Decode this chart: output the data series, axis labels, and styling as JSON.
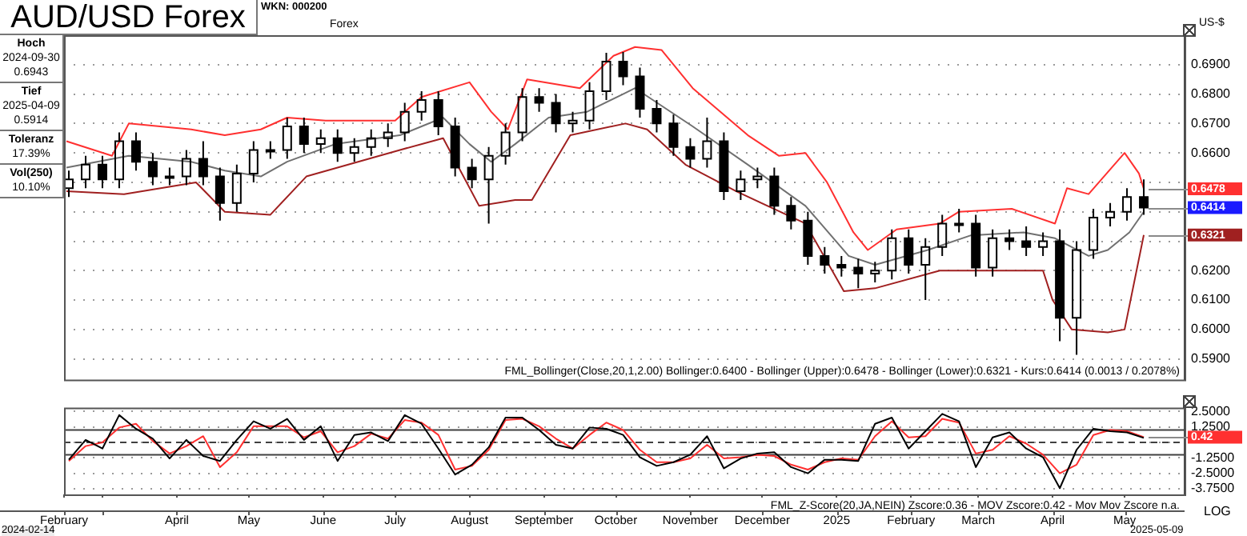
{
  "chart_data": [
    {
      "type": "candlestick",
      "title": "AUD/USD Forex",
      "ylabel": "US-$",
      "color": "#000000",
      "x": [
        "2024-02-16",
        "2024-02-23",
        "2024-03-01",
        "2024-03-08",
        "2024-03-15",
        "2024-03-22",
        "2024-03-29",
        "2024-04-05",
        "2024-04-12",
        "2024-04-19",
        "2024-04-26",
        "2024-05-03",
        "2024-05-10",
        "2024-05-17",
        "2024-05-24",
        "2024-05-31",
        "2024-06-07",
        "2024-06-14",
        "2024-06-21",
        "2024-06-28",
        "2024-07-05",
        "2024-07-12",
        "2024-07-19",
        "2024-07-26",
        "2024-08-02",
        "2024-08-09",
        "2024-08-16",
        "2024-08-23",
        "2024-08-30",
        "2024-09-06",
        "2024-09-13",
        "2024-09-20",
        "2024-09-27",
        "2024-10-04",
        "2024-10-11",
        "2024-10-18",
        "2024-10-25",
        "2024-11-01",
        "2024-11-08",
        "2024-11-15",
        "2024-11-22",
        "2024-11-29",
        "2024-12-06",
        "2024-12-13",
        "2024-12-20",
        "2024-12-27",
        "2025-01-03",
        "2025-01-10",
        "2025-01-17",
        "2025-01-24",
        "2025-01-31",
        "2025-02-07",
        "2025-02-14",
        "2025-02-21",
        "2025-02-28",
        "2025-03-07",
        "2025-03-14",
        "2025-03-21",
        "2025-03-28",
        "2025-04-04",
        "2025-04-11",
        "2025-04-18",
        "2025-04-25",
        "2025-05-02",
        "2025-05-09"
      ],
      "ohlc": [
        [
          0.648,
          0.654,
          0.645,
          0.651
        ],
        [
          0.651,
          0.659,
          0.648,
          0.656
        ],
        [
          0.656,
          0.659,
          0.648,
          0.651
        ],
        [
          0.651,
          0.667,
          0.648,
          0.664
        ],
        [
          0.664,
          0.667,
          0.654,
          0.657
        ],
        [
          0.657,
          0.66,
          0.649,
          0.652
        ],
        [
          0.652,
          0.655,
          0.649,
          0.652
        ],
        [
          0.652,
          0.661,
          0.649,
          0.658
        ],
        [
          0.658,
          0.664,
          0.649,
          0.652
        ],
        [
          0.652,
          0.655,
          0.637,
          0.643
        ],
        [
          0.643,
          0.656,
          0.64,
          0.653
        ],
        [
          0.653,
          0.664,
          0.65,
          0.661
        ],
        [
          0.661,
          0.664,
          0.658,
          0.661
        ],
        [
          0.661,
          0.672,
          0.658,
          0.669
        ],
        [
          0.669,
          0.672,
          0.66,
          0.663
        ],
        [
          0.663,
          0.668,
          0.66,
          0.665
        ],
        [
          0.665,
          0.668,
          0.657,
          0.66
        ],
        [
          0.66,
          0.665,
          0.657,
          0.662
        ],
        [
          0.662,
          0.668,
          0.659,
          0.665
        ],
        [
          0.665,
          0.67,
          0.662,
          0.667
        ],
        [
          0.667,
          0.677,
          0.664,
          0.674
        ],
        [
          0.674,
          0.681,
          0.671,
          0.678
        ],
        [
          0.678,
          0.681,
          0.666,
          0.669
        ],
        [
          0.669,
          0.672,
          0.652,
          0.655
        ],
        [
          0.655,
          0.658,
          0.648,
          0.651
        ],
        [
          0.651,
          0.662,
          0.636,
          0.659
        ],
        [
          0.659,
          0.67,
          0.656,
          0.667
        ],
        [
          0.667,
          0.682,
          0.664,
          0.679
        ],
        [
          0.679,
          0.682,
          0.674,
          0.677
        ],
        [
          0.677,
          0.68,
          0.667,
          0.67
        ],
        [
          0.67,
          0.674,
          0.667,
          0.671
        ],
        [
          0.671,
          0.684,
          0.668,
          0.681
        ],
        [
          0.681,
          0.694,
          0.678,
          0.691
        ],
        [
          0.691,
          0.6943,
          0.683,
          0.686
        ],
        [
          0.686,
          0.689,
          0.672,
          0.675
        ],
        [
          0.675,
          0.678,
          0.667,
          0.67
        ],
        [
          0.67,
          0.673,
          0.659,
          0.662
        ],
        [
          0.662,
          0.665,
          0.655,
          0.658
        ],
        [
          0.658,
          0.672,
          0.655,
          0.664
        ],
        [
          0.664,
          0.667,
          0.644,
          0.647
        ],
        [
          0.647,
          0.654,
          0.644,
          0.651
        ],
        [
          0.651,
          0.655,
          0.648,
          0.652
        ],
        [
          0.652,
          0.655,
          0.639,
          0.642
        ],
        [
          0.642,
          0.645,
          0.634,
          0.637
        ],
        [
          0.637,
          0.64,
          0.622,
          0.625
        ],
        [
          0.625,
          0.628,
          0.619,
          0.622
        ],
        [
          0.622,
          0.625,
          0.618,
          0.621
        ],
        [
          0.621,
          0.624,
          0.614,
          0.619
        ],
        [
          0.619,
          0.623,
          0.616,
          0.62
        ],
        [
          0.62,
          0.634,
          0.617,
          0.631
        ],
        [
          0.631,
          0.634,
          0.619,
          0.622
        ],
        [
          0.622,
          0.631,
          0.61,
          0.628
        ],
        [
          0.628,
          0.639,
          0.625,
          0.636
        ],
        [
          0.636,
          0.641,
          0.633,
          0.636
        ],
        [
          0.636,
          0.639,
          0.618,
          0.621
        ],
        [
          0.621,
          0.634,
          0.618,
          0.631
        ],
        [
          0.631,
          0.634,
          0.627,
          0.63
        ],
        [
          0.63,
          0.635,
          0.625,
          0.628
        ],
        [
          0.628,
          0.633,
          0.625,
          0.63
        ],
        [
          0.63,
          0.634,
          0.596,
          0.604
        ],
        [
          0.604,
          0.63,
          0.5914,
          0.627
        ],
        [
          0.627,
          0.641,
          0.624,
          0.638
        ],
        [
          0.638,
          0.643,
          0.635,
          0.64
        ],
        [
          0.64,
          0.648,
          0.637,
          0.645
        ],
        [
          0.645,
          0.651,
          0.639,
          0.6414
        ]
      ],
      "series": [
        {
          "type": "line",
          "color": "#ff3030",
          "x": [
            "2024-02-15",
            "2024-03-05",
            "2024-03-12",
            "2024-04-07",
            "2024-04-21",
            "2024-05-06",
            "2024-05-17",
            "2024-06-02",
            "2024-07-01",
            "2024-07-12",
            "2024-08-01",
            "2024-08-10",
            "2024-08-17",
            "2024-08-25",
            "2024-09-16",
            "2024-09-30",
            "2024-10-09",
            "2024-10-20",
            "2024-11-02",
            "2024-11-25",
            "2024-12-08",
            "2024-12-19",
            "2024-12-28",
            "2025-01-08",
            "2025-01-14",
            "2025-01-26",
            "2025-02-13",
            "2025-02-21",
            "2025-03-15",
            "2025-04-02",
            "2025-04-07",
            "2025-04-16",
            "2025-05-01",
            "2025-05-07",
            "2025-05-09"
          ],
          "values": [
            0.664,
            0.659,
            0.67,
            0.668,
            0.666,
            0.668,
            0.672,
            0.671,
            0.671,
            0.679,
            0.684,
            0.674,
            0.668,
            0.685,
            0.682,
            0.693,
            0.696,
            0.695,
            0.682,
            0.666,
            0.659,
            0.66,
            0.65,
            0.633,
            0.627,
            0.634,
            0.636,
            0.64,
            0.641,
            0.636,
            0.648,
            0.646,
            0.66,
            0.653,
            0.6478
          ]
        },
        {
          "type": "line",
          "color": "#707070",
          "x": [
            "2024-02-15",
            "2024-03-12",
            "2024-04-07",
            "2024-04-21",
            "2024-05-06",
            "2024-05-17",
            "2024-06-06",
            "2024-07-03",
            "2024-07-21",
            "2024-08-01",
            "2024-08-10",
            "2024-08-20",
            "2024-09-03",
            "2024-09-19",
            "2024-10-04",
            "2024-10-09",
            "2024-11-02",
            "2024-11-25",
            "2024-12-19",
            "2025-01-06",
            "2025-01-17",
            "2025-02-08",
            "2025-02-26",
            "2025-03-20",
            "2025-04-02",
            "2025-04-16",
            "2025-04-24",
            "2025-05-03",
            "2025-05-09"
          ],
          "values": [
            0.655,
            0.659,
            0.657,
            0.654,
            0.652,
            0.657,
            0.663,
            0.666,
            0.672,
            0.663,
            0.657,
            0.663,
            0.672,
            0.674,
            0.68,
            0.682,
            0.669,
            0.656,
            0.642,
            0.625,
            0.622,
            0.627,
            0.632,
            0.633,
            0.631,
            0.625,
            0.627,
            0.633,
            0.64
          ]
        },
        {
          "type": "line",
          "color": "#a02020",
          "x": [
            "2024-02-15",
            "2024-03-10",
            "2024-04-09",
            "2024-04-21",
            "2024-05-10",
            "2024-05-25",
            "2024-07-03",
            "2024-07-21",
            "2024-08-05",
            "2024-08-20",
            "2024-08-27",
            "2024-09-12",
            "2024-10-05",
            "2024-10-14",
            "2024-10-30",
            "2024-11-20",
            "2024-12-19",
            "2025-01-04",
            "2025-01-17",
            "2025-02-13",
            "2025-03-28",
            "2025-04-01",
            "2025-04-09",
            "2025-04-24",
            "2025-05-01",
            "2025-05-09"
          ],
          "values": [
            0.647,
            0.646,
            0.65,
            0.64,
            0.639,
            0.652,
            0.661,
            0.665,
            0.642,
            0.644,
            0.644,
            0.666,
            0.67,
            0.668,
            0.656,
            0.647,
            0.636,
            0.613,
            0.614,
            0.62,
            0.62,
            0.61,
            0.6,
            0.599,
            0.6,
            0.6321
          ]
        }
      ],
      "xlim": [
        "2024-02-14",
        "2025-05-26"
      ],
      "ylim": [
        0.583,
        0.7
      ],
      "yticks": [
        {
          "value": 0.59,
          "label": "0.5900"
        },
        {
          "value": 0.6,
          "label": "0.6000"
        },
        {
          "value": 0.61,
          "label": "0.6100"
        },
        {
          "value": 0.62,
          "label": "0.6200"
        },
        {
          "value": 0.63,
          "label": null
        },
        {
          "value": 0.64,
          "label": null
        },
        {
          "value": 0.65,
          "label": null
        },
        {
          "value": 0.66,
          "label": "0.6600"
        },
        {
          "value": 0.67,
          "label": "0.6700"
        },
        {
          "value": 0.68,
          "label": "0.6800"
        },
        {
          "value": 0.69,
          "label": "0.6900"
        }
      ],
      "grid": "y",
      "tick_labels": "y",
      "annotations": [
        "FML_Bollinger(Close,20,1,2.00) Bollinger:0.6400 - Bollinger (Upper):0.6478 - Bollinger (Lower):0.6321 - Kurs:0.6414 (0.0013 / 0.2078%)",
        "WKN: 000200",
        "Forex",
        "Hoch",
        "2024-09-30",
        "0.6943",
        "Tief",
        "2025-04-09",
        "0.5914",
        "Toleranz",
        "17.39%",
        "Vol(250)",
        "10.10%",
        {
          "text": "0.6478",
          "x": "2025-05-09",
          "y": 0.6478
        },
        {
          "text": "0.6414",
          "x": "2025-05-09",
          "y": 0.6414
        },
        {
          "text": "0.6321",
          "x": "2025-05-09",
          "y": 0.6321
        }
      ]
    },
    {
      "type": "line",
      "x": [
        "2024-02-16",
        "2024-02-23",
        "2024-03-01",
        "2024-03-08",
        "2024-03-15",
        "2024-03-22",
        "2024-03-29",
        "2024-04-05",
        "2024-04-12",
        "2024-04-19",
        "2024-04-26",
        "2024-05-03",
        "2024-05-10",
        "2024-05-17",
        "2024-05-24",
        "2024-05-31",
        "2024-06-07",
        "2024-06-14",
        "2024-06-21",
        "2024-06-28",
        "2024-07-05",
        "2024-07-12",
        "2024-07-19",
        "2024-07-26",
        "2024-08-02",
        "2024-08-09",
        "2024-08-16",
        "2024-08-23",
        "2024-08-30",
        "2024-09-06",
        "2024-09-13",
        "2024-09-20",
        "2024-09-27",
        "2024-10-04",
        "2024-10-11",
        "2024-10-18",
        "2024-10-25",
        "2024-11-01",
        "2024-11-08",
        "2024-11-15",
        "2024-11-22",
        "2024-11-29",
        "2024-12-06",
        "2024-12-13",
        "2024-12-20",
        "2024-12-27",
        "2025-01-03",
        "2025-01-10",
        "2025-01-17",
        "2025-01-24",
        "2025-01-31",
        "2025-02-07",
        "2025-02-14",
        "2025-02-21",
        "2025-02-28",
        "2025-03-07",
        "2025-03-14",
        "2025-03-21",
        "2025-03-28",
        "2025-04-04",
        "2025-04-11",
        "2025-04-18",
        "2025-04-25",
        "2025-05-02",
        "2025-05-09"
      ],
      "series": [
        {
          "color": "#000000",
          "values": [
            -1.4,
            0.2,
            -0.5,
            2.2,
            1.1,
            0.3,
            -1.3,
            0.2,
            -1.1,
            -1.5,
            0.2,
            1.7,
            1.1,
            1.9,
            0.2,
            1.3,
            -1.5,
            0.6,
            0.8,
            0.1,
            2.2,
            1.5,
            -0.5,
            -2.6,
            -1.8,
            -0.4,
            2.0,
            2.0,
            1.0,
            -0.2,
            -0.5,
            1.2,
            1.1,
            0.6,
            -1.2,
            -1.9,
            -1.6,
            -1.0,
            0.5,
            -2.1,
            -1.3,
            -0.9,
            -0.8,
            -2.0,
            -2.5,
            -1.4,
            -1.4,
            -1.5,
            1.5,
            2.0,
            -0.5,
            0.9,
            2.3,
            1.7,
            -2.0,
            0.4,
            0.8,
            -0.5,
            -1.2,
            -3.7,
            -0.6,
            1.1,
            0.9,
            0.8,
            0.36
          ]
        },
        {
          "color": "#ff3030",
          "values": [
            -1.5,
            -0.3,
            0.0,
            1.2,
            1.5,
            0.1,
            -0.9,
            -0.3,
            0.5,
            -2.0,
            -0.8,
            1.3,
            1.3,
            1.3,
            0.4,
            0.9,
            -0.8,
            -0.3,
            0.7,
            0.3,
            1.8,
            1.6,
            0.6,
            -2.2,
            -1.9,
            -0.6,
            1.8,
            1.9,
            1.3,
            0.3,
            -0.5,
            0.6,
            1.6,
            1.0,
            -0.6,
            -1.6,
            -1.6,
            -1.3,
            -0.2,
            -1.3,
            -1.2,
            -1.0,
            -1.1,
            -1.8,
            -2.2,
            -1.6,
            -1.3,
            -1.4,
            0.5,
            1.7,
            0.4,
            0.5,
            1.9,
            1.6,
            -0.9,
            -0.6,
            0.5,
            -0.1,
            -1.0,
            -2.5,
            -1.8,
            0.6,
            1.0,
            0.9,
            0.42
          ]
        }
      ],
      "xlim": [
        "2024-02-14",
        "2025-05-26"
      ],
      "xticks": [
        {
          "value": "2024-02-14",
          "label": "February"
        },
        {
          "value": "2024-03-01",
          "label": null
        },
        {
          "value": "2024-04-01",
          "label": "April"
        },
        {
          "value": "2024-05-01",
          "label": "May"
        },
        {
          "value": "2024-06-01",
          "label": "June"
        },
        {
          "value": "2024-07-01",
          "label": "July"
        },
        {
          "value": "2024-08-01",
          "label": "August"
        },
        {
          "value": "2024-09-01",
          "label": "September"
        },
        {
          "value": "2024-10-01",
          "label": "October"
        },
        {
          "value": "2024-11-01",
          "label": "November"
        },
        {
          "value": "2024-12-01",
          "label": "December"
        },
        {
          "value": "2025-01-01",
          "label": "2025"
        },
        {
          "value": "2025-02-01",
          "label": "February"
        },
        {
          "value": "2025-03-01",
          "label": "March"
        },
        {
          "value": "2025-04-01",
          "label": "April"
        },
        {
          "value": "2025-05-01",
          "label": "May"
        }
      ],
      "ylim": [
        -4.2,
        2.8
      ],
      "yticks": [
        {
          "value": 2.5,
          "label": "2.5000"
        },
        {
          "value": 1.25,
          "label": "1.2500"
        },
        {
          "value": 0,
          "label": null
        },
        {
          "value": -1.25,
          "label": "-1.2500"
        },
        {
          "value": -2.5,
          "label": "-2.5000"
        },
        {
          "value": -3.75,
          "label": "-3.7500"
        }
      ],
      "grid": "y",
      "ref_lines": [
        {
          "axis": "y",
          "value": 1,
          "color": "#404040",
          "line_style": "solid"
        },
        {
          "axis": "y",
          "value": -1,
          "color": "#404040",
          "line_style": "solid"
        },
        {
          "axis": "y",
          "value": 0,
          "color": "#404040",
          "line_style": "dashed"
        }
      ],
      "annotations": [
        "FML_Z-Score(20,JA,NEIN) Zscore:0.36 - MOV Zscore:0.42 - Mov Mov Zscore n.a.",
        "2024-02-14",
        "2025-05-09",
        "LOG",
        {
          "text": "0.42",
          "x": "2025-05-09",
          "y": 0.42
        }
      ]
    }
  ]
}
